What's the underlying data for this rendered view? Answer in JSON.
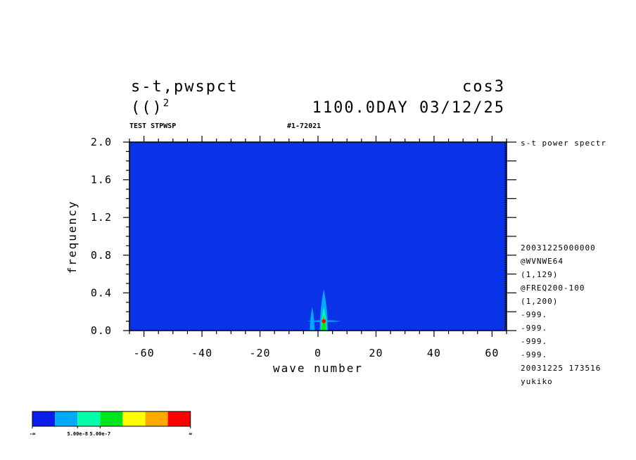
{
  "header": {
    "left_line1": "s-t,pwspct",
    "left_line2": "(()",
    "left_line2_exp": "2",
    "right_line1": "cos3",
    "right_line2": "1100.0DAY 03/12/25",
    "sub_left": "TEST STPWSP",
    "sub_right": "#1-72021"
  },
  "side_panel": {
    "title": "s-t power spectr",
    "lines": [
      "20031225000000",
      "@WVNWE64",
      "(1,129)",
      "@FREQ200-100",
      "(1,200)",
      "-999.",
      "-999.",
      "-999.",
      "-999.",
      "20031225 173516",
      "yukiko"
    ]
  },
  "colors": {
    "background_field": "#0a32e6",
    "levels": [
      "#0a1eeb",
      "#00aaff",
      "#00ffaa",
      "#00e61e",
      "#ffff00",
      "#ffaa00",
      "#ff0000"
    ]
  },
  "chart_data": {
    "type": "heatmap",
    "title": "s-t,pwspct",
    "xlabel": "wave number",
    "ylabel": "frequency",
    "xlim": [
      -65,
      65
    ],
    "ylim": [
      0,
      2.0
    ],
    "x_ticks": [
      -60,
      -40,
      -20,
      0,
      20,
      40,
      60
    ],
    "x_tick_labels": [
      "-60",
      "-40",
      "-20",
      "0",
      "20",
      "40",
      "60"
    ],
    "y_ticks": [
      0,
      0.4,
      0.8,
      1.2,
      1.6,
      2.0
    ],
    "y_tick_labels": [
      "0.0",
      "0.4",
      "0.8",
      "1.2",
      "1.6",
      "2.0"
    ],
    "features": [
      {
        "level": 1,
        "x": -2,
        "y0": 0,
        "y1": 0.25,
        "halfwidth": 0.8
      },
      {
        "level": 1,
        "x": 2,
        "y0": 0,
        "y1": 0.44,
        "halfwidth": 1.4
      },
      {
        "level": 1,
        "x": 2,
        "y": 0.1,
        "x0": -4,
        "x1": 8,
        "halfheight": 0.01
      },
      {
        "level": 2,
        "x": 2,
        "y0": 0,
        "y1": 0.25,
        "halfwidth": 1.0
      },
      {
        "level": 3,
        "x": 2,
        "y0": 0,
        "y1": 0.16,
        "halfwidth": 0.8
      },
      {
        "level": 6,
        "x": 2,
        "y": 0.1,
        "r": 0.7
      }
    ],
    "colorbar": {
      "colors": [
        "#0a1eeb",
        "#00aaff",
        "#00ffaa",
        "#00e61e",
        "#ffff00",
        "#ffaa00",
        "#ff0000"
      ],
      "labels": [
        {
          "after": 0,
          "text": "-∞"
        },
        {
          "after": 2,
          "text": "5.00e-8"
        },
        {
          "after": 3,
          "text": "5.00e-7"
        },
        {
          "after": 7,
          "text": "∞"
        }
      ]
    }
  }
}
